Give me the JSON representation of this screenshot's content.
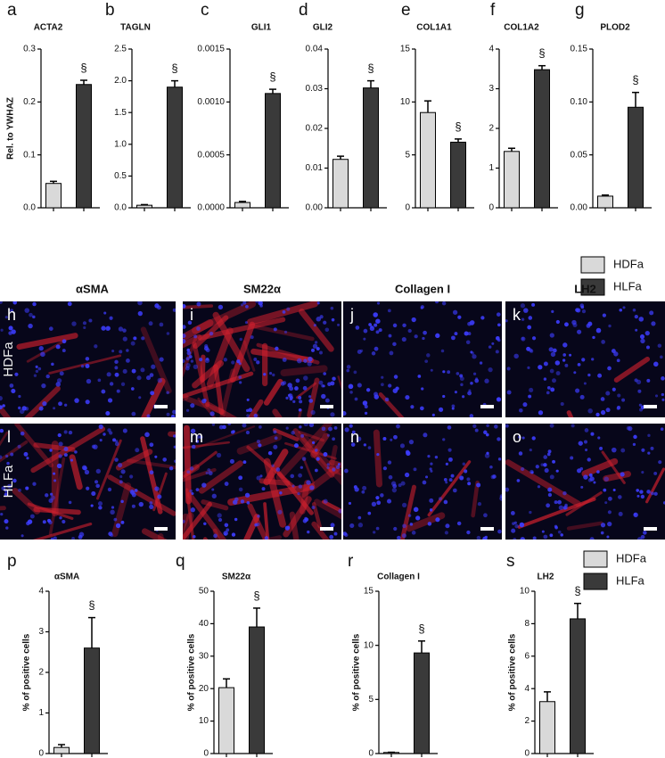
{
  "chart_data": [
    {
      "type": "bar",
      "panel": "a",
      "title": "ACTA2",
      "ylabel": "Rel. to YWHAZ",
      "ylim": [
        0,
        0.3
      ],
      "yticks": [
        {
          "value": 0,
          "label": "0.0"
        },
        0.1,
        0.2,
        0.3
      ],
      "values": [
        0.046,
        0.233
      ],
      "errors": [
        0.004,
        0.008
      ],
      "annotation": "§"
    },
    {
      "type": "bar",
      "panel": "b",
      "title": "TAGLN",
      "ylim": [
        0,
        2.5
      ],
      "yticks": [
        {
          "value": 0,
          "label": "0.0"
        },
        0.5,
        {
          "value": 1,
          "label": "1.0"
        },
        1.5,
        {
          "value": 2,
          "label": "2.0"
        },
        2.5
      ],
      "values": [
        0.04,
        1.9
      ],
      "errors": [
        0.01,
        0.1
      ],
      "annotation": "§"
    },
    {
      "type": "bar",
      "panel": "c",
      "title": "GLI1",
      "ylim": [
        0,
        0.0015
      ],
      "yticks": [
        {
          "value": 0,
          "label": "0.0000"
        },
        0.0005,
        {
          "value": 0.001,
          "label": "0.0010"
        },
        0.0015
      ],
      "values": [
        5e-05,
        0.00108
      ],
      "errors": [
        1e-05,
        4e-05
      ],
      "annotation": "§"
    },
    {
      "type": "bar",
      "panel": "d",
      "title": "GLI2",
      "ylim": [
        0,
        0.04
      ],
      "yticks": [
        {
          "value": 0,
          "label": "0.00"
        },
        0.01,
        0.02,
        0.03,
        0.04
      ],
      "values": [
        0.0122,
        0.0302
      ],
      "errors": [
        0.0008,
        0.0018
      ],
      "annotation": "§"
    },
    {
      "type": "bar",
      "panel": "e",
      "title": "COL1A1",
      "ylim": [
        0,
        15
      ],
      "yticks": [
        0,
        5,
        10,
        15
      ],
      "values": [
        9.0,
        6.2
      ],
      "errors": [
        1.1,
        0.3
      ],
      "annotation": "§"
    },
    {
      "type": "bar",
      "panel": "f",
      "title": "COL1A2",
      "ylim": [
        0,
        4
      ],
      "yticks": [
        0,
        1,
        2,
        3,
        4
      ],
      "values": [
        1.42,
        3.48
      ],
      "errors": [
        0.08,
        0.1
      ],
      "annotation": "§"
    },
    {
      "type": "bar",
      "panel": "g",
      "title": "PLOD2",
      "ylim": [
        0,
        0.15
      ],
      "yticks": [
        {
          "value": 0,
          "label": "0.00"
        },
        0.05,
        {
          "value": 0.1,
          "label": "0.10"
        },
        0.15
      ],
      "values": [
        0.011,
        0.095
      ],
      "errors": [
        0.001,
        0.014
      ],
      "annotation": "§"
    },
    {
      "type": "bar",
      "panel": "p",
      "title": "αSMA",
      "ylabel": "% of positive cells",
      "ylim": [
        0,
        4
      ],
      "yticks": [
        0,
        1,
        2,
        3,
        4
      ],
      "values": [
        0.15,
        2.6
      ],
      "errors": [
        0.07,
        0.75
      ],
      "annotation": "§"
    },
    {
      "type": "bar",
      "panel": "q",
      "title": "SM22α",
      "ylabel": "% of positive cells",
      "ylim": [
        0,
        50
      ],
      "yticks": [
        0,
        10,
        20,
        30,
        40,
        50
      ],
      "values": [
        20.3,
        39
      ],
      "errors": [
        2.7,
        5.8
      ],
      "annotation": "§"
    },
    {
      "type": "bar",
      "panel": "r",
      "title": "Collagen I",
      "ylabel": "% of positive cells",
      "ylim": [
        0,
        15
      ],
      "yticks": [
        0,
        5,
        10,
        15
      ],
      "values": [
        0.1,
        9.3
      ],
      "errors": [
        0.02,
        1.1
      ],
      "annotation": "§"
    },
    {
      "type": "bar",
      "panel": "s",
      "title": "LH2",
      "ylabel": "% of positive cells",
      "ylim": [
        0,
        10
      ],
      "yticks": [
        0,
        2,
        4,
        6,
        8,
        10
      ],
      "values": [
        3.2,
        8.3
      ],
      "errors": [
        0.6,
        0.95
      ],
      "annotation": "§"
    }
  ],
  "legend": [
    {
      "name": "HDFa",
      "color": "#d9d9d9"
    },
    {
      "name": "HLFa",
      "color": "#3a3a3a"
    }
  ],
  "images": {
    "columns": [
      "αSMA",
      "SM22α",
      "Collagen I",
      "LH2"
    ],
    "rows": [
      "HDFa",
      "HLFa"
    ],
    "panels": [
      [
        "h",
        "i",
        "j",
        "k"
      ],
      [
        "l",
        "m",
        "n",
        "o"
      ]
    ]
  }
}
